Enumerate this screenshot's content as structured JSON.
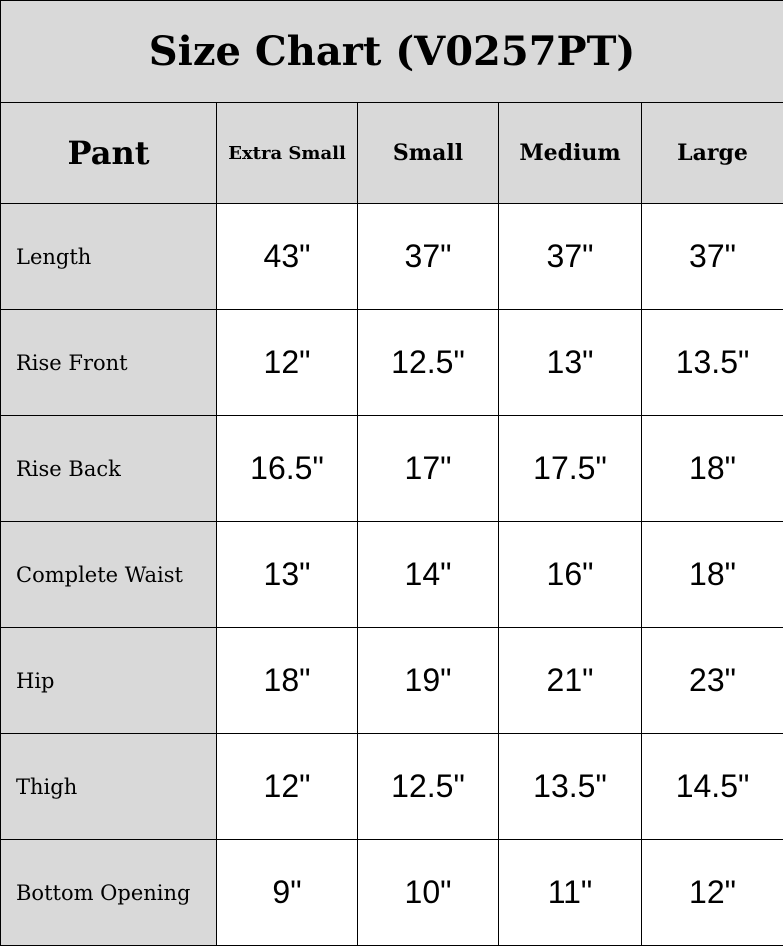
{
  "title": "Size Chart (V0257PT)",
  "header": {
    "corner": "Pant",
    "sizes": [
      "Extra Small",
      "Small",
      "Medium",
      "Large"
    ]
  },
  "rows": [
    {
      "label": "Length",
      "values": [
        "43\"",
        "37\"",
        "37\"",
        "37\""
      ]
    },
    {
      "label": "Rise Front",
      "values": [
        "12\"",
        "12.5\"",
        "13\"",
        "13.5\""
      ]
    },
    {
      "label": "Rise Back",
      "values": [
        "16.5\"",
        "17\"",
        "17.5\"",
        "18\""
      ]
    },
    {
      "label": "Complete Waist",
      "values": [
        "13\"",
        "14\"",
        "16\"",
        "18\""
      ]
    },
    {
      "label": "Hip",
      "values": [
        "18\"",
        "19\"",
        "21\"",
        "23\""
      ]
    },
    {
      "label": "Thigh",
      "values": [
        "12\"",
        "12.5\"",
        "13.5\"",
        "14.5\""
      ]
    },
    {
      "label": "Bottom Opening",
      "values": [
        "9\"",
        "10\"",
        "11\"",
        "12\""
      ]
    }
  ],
  "colors": {
    "header_bg": "#d9d9d9",
    "cell_bg": "#ffffff",
    "border": "#000000"
  }
}
